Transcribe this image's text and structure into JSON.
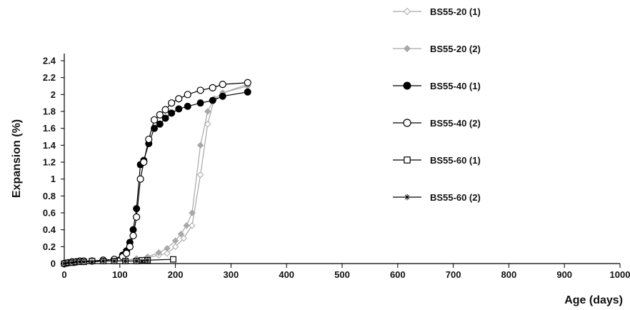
{
  "chart_data": {
    "type": "line",
    "xlabel": "Age (days)",
    "ylabel": "Expansion (%)",
    "xlim": [
      0,
      1000
    ],
    "ylim": [
      0,
      2.4
    ],
    "x_ticks": [
      0,
      100,
      200,
      300,
      400,
      500,
      600,
      700,
      800,
      900,
      1000
    ],
    "y_ticks": [
      0,
      0.2,
      0.4,
      0.6,
      0.8,
      1,
      1.2,
      1.4,
      1.6,
      1.8,
      2,
      2.2,
      2.4
    ],
    "y_tick_labels": [
      "0",
      "0.2",
      "0.4",
      "0.6",
      "0.8",
      "1",
      "1.2",
      "1.4",
      "1.6",
      "1.8",
      "2",
      "2.2",
      "2.4"
    ],
    "grid": false,
    "legend_position": "top-right",
    "series": [
      {
        "name": "BS55-20 (1)",
        "color": "#a8a8a8",
        "marker": "diamond-open",
        "x": [
          0,
          7,
          14,
          21,
          28,
          35,
          50,
          70,
          90,
          110,
          130,
          150,
          170,
          185,
          200,
          215,
          230,
          245,
          258,
          270,
          285,
          330
        ],
        "y": [
          0,
          0.01,
          0.02,
          0.02,
          0.02,
          0.03,
          0.03,
          0.03,
          0.03,
          0.04,
          0.05,
          0.07,
          0.1,
          0.12,
          0.2,
          0.3,
          0.45,
          1.05,
          1.65,
          1.95,
          2.02,
          2.12
        ]
      },
      {
        "name": "BS55-20 (2)",
        "color": "#a8a8a8",
        "marker": "diamond-filled",
        "x": [
          0,
          7,
          14,
          21,
          28,
          35,
          50,
          70,
          90,
          110,
          130,
          150,
          170,
          185,
          200,
          210,
          220,
          230,
          245,
          258,
          270,
          285,
          330
        ],
        "y": [
          0,
          0.01,
          0.02,
          0.02,
          0.02,
          0.03,
          0.03,
          0.03,
          0.03,
          0.04,
          0.06,
          0.08,
          0.13,
          0.18,
          0.27,
          0.35,
          0.45,
          0.6,
          1.4,
          1.8,
          1.95,
          2.02,
          2.1
        ]
      },
      {
        "name": "BS55-40 (1)",
        "color": "#000000",
        "marker": "circle-filled",
        "x": [
          0,
          7,
          14,
          21,
          28,
          35,
          50,
          70,
          90,
          105,
          112,
          118,
          124,
          130,
          137,
          143,
          152,
          162,
          172,
          182,
          193,
          206,
          222,
          245,
          267,
          285,
          330
        ],
        "y": [
          0,
          0.01,
          0.02,
          0.02,
          0.03,
          0.03,
          0.03,
          0.04,
          0.05,
          0.1,
          0.15,
          0.25,
          0.4,
          0.65,
          1.17,
          1.22,
          1.42,
          1.6,
          1.65,
          1.72,
          1.78,
          1.83,
          1.86,
          1.9,
          1.93,
          1.98,
          2.03
        ]
      },
      {
        "name": "BS55-40 (2)",
        "color": "#000000",
        "marker": "circle-open",
        "x": [
          0,
          7,
          14,
          21,
          28,
          35,
          50,
          70,
          90,
          105,
          112,
          118,
          124,
          130,
          137,
          143,
          152,
          162,
          172,
          182,
          193,
          206,
          222,
          245,
          267,
          285,
          330
        ],
        "y": [
          0,
          0.01,
          0.02,
          0.02,
          0.03,
          0.03,
          0.03,
          0.04,
          0.05,
          0.08,
          0.12,
          0.2,
          0.33,
          0.55,
          1.0,
          1.2,
          1.47,
          1.7,
          1.76,
          1.82,
          1.9,
          1.95,
          2.0,
          2.05,
          2.08,
          2.12,
          2.14
        ]
      },
      {
        "name": "BS55-60 (1)",
        "color": "#000000",
        "marker": "square-open",
        "x": [
          0,
          7,
          14,
          21,
          28,
          35,
          50,
          70,
          90,
          110,
          130,
          140,
          150,
          196
        ],
        "y": [
          0,
          0.01,
          0.01,
          0.02,
          0.02,
          0.02,
          0.03,
          0.03,
          0.03,
          0.03,
          0.03,
          0.04,
          0.04,
          0.05
        ]
      },
      {
        "name": "BS55-60 (2)",
        "color": "#000000",
        "marker": "asterisk",
        "x": [
          0,
          7,
          14,
          21,
          28,
          35,
          50,
          70,
          90,
          110,
          130,
          140,
          150
        ],
        "y": [
          0,
          0.01,
          0.01,
          0.02,
          0.02,
          0.02,
          0.02,
          0.03,
          0.03,
          0.03,
          0.03,
          0.03,
          0.04
        ]
      }
    ]
  }
}
